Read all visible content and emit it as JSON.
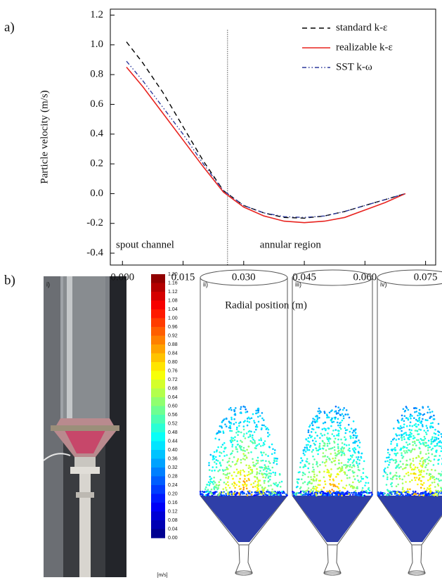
{
  "panel_labels": {
    "a": "a)",
    "b": "b)"
  },
  "chart_data": {
    "type": "line",
    "x_label": "Radial position (m)",
    "y_label": "Particle velocity (m/s)",
    "x": [
      0.001,
      0.005,
      0.01,
      0.015,
      0.02,
      0.025,
      0.03,
      0.035,
      0.04,
      0.045,
      0.05,
      0.055,
      0.06,
      0.065,
      0.07
    ],
    "series": [
      {
        "name": "standard k-ε",
        "color": "#000000",
        "linestyle": "dashed",
        "values": [
          1.02,
          0.88,
          0.68,
          0.45,
          0.22,
          0.02,
          -0.08,
          -0.13,
          -0.16,
          -0.165,
          -0.15,
          -0.12,
          -0.08,
          -0.04,
          0.0
        ]
      },
      {
        "name": "realizable k-ε",
        "color": "#e8231f",
        "linestyle": "solid",
        "values": [
          0.85,
          0.72,
          0.54,
          0.36,
          0.18,
          0.01,
          -0.09,
          -0.15,
          -0.185,
          -0.195,
          -0.185,
          -0.16,
          -0.11,
          -0.06,
          0.0
        ]
      },
      {
        "name": "SST k-ω",
        "color": "#2d3a9c",
        "linestyle": "dashdotdot",
        "values": [
          0.89,
          0.76,
          0.58,
          0.4,
          0.2,
          0.02,
          -0.08,
          -0.13,
          -0.155,
          -0.16,
          -0.15,
          -0.12,
          -0.08,
          -0.04,
          0.0
        ]
      }
    ],
    "xlim": [
      -0.003,
      0.0775
    ],
    "ylim": [
      -0.48,
      1.24
    ],
    "xticks": [
      {
        "value": 0,
        "label": "0.000"
      },
      0.015,
      {
        "value": 0.03,
        "label": "0.030"
      },
      0.045,
      {
        "value": 0.06,
        "label": "0.060"
      },
      {
        "value": 0.075,
        "label": "0.075"
      }
    ],
    "yticks": [
      -0.4,
      -0.2,
      {
        "value": 0,
        "label": "0.0"
      },
      0.2,
      0.4,
      0.6,
      0.8,
      {
        "value": 1,
        "label": "1.0"
      },
      1.2
    ],
    "legend": "upper right",
    "divider_x": 0.026,
    "annotations": [
      "spout channel",
      "annular region"
    ]
  },
  "photo": {
    "label": "i)"
  },
  "colorbar": {
    "labels": [
      "1.20",
      "1.16",
      "1.12",
      "1.08",
      "1.04",
      "1.00",
      "0.96",
      "0.92",
      "0.88",
      "0.84",
      "0.80",
      "0.76",
      "0.72",
      "0.68",
      "0.64",
      "0.60",
      "0.56",
      "0.52",
      "0.48",
      "0.44",
      "0.40",
      "0.36",
      "0.32",
      "0.28",
      "0.24",
      "0.20",
      "0.16",
      "0.12",
      "0.08",
      "0.04",
      "0.00"
    ],
    "unit": "[m/s]"
  },
  "simulations": [
    {
      "label": "ii)"
    },
    {
      "label": "iii)"
    },
    {
      "label": "iv)"
    }
  ]
}
